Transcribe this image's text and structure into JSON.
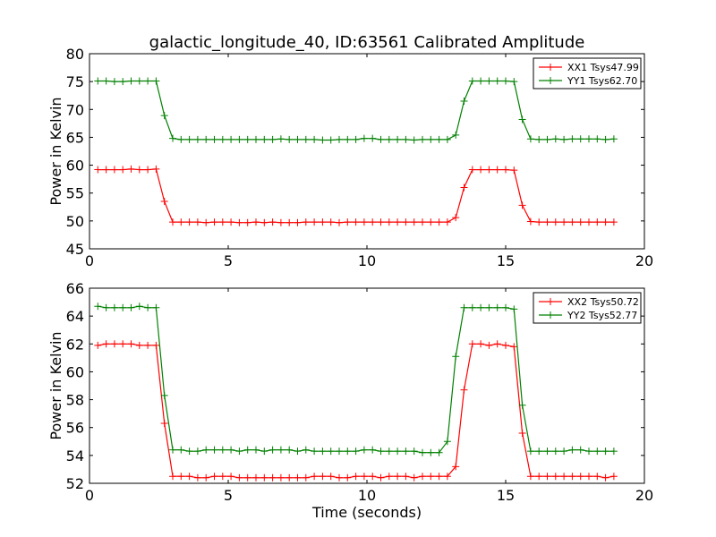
{
  "figure": {
    "title": "galactic_longitude_40, ID:63561 Calibrated Amplitude"
  },
  "colors": {
    "xx": "#ff0000",
    "yy": "#008000",
    "frame": "#000000",
    "background": "#ffffff"
  },
  "chart_data": [
    {
      "type": "line",
      "title": "galactic_longitude_40, ID:63561 Calibrated Amplitude",
      "xlabel": "",
      "ylabel": "Power in Kelvin",
      "xlim": [
        0,
        20
      ],
      "ylim": [
        45,
        80
      ],
      "xticks": [
        0,
        5,
        10,
        15,
        20
      ],
      "yticks": [
        45,
        50,
        55,
        60,
        65,
        70,
        75,
        80
      ],
      "grid": false,
      "legend_position": "top-right",
      "x": [
        0.3,
        0.6,
        0.9,
        1.2,
        1.5,
        1.8,
        2.1,
        2.4,
        2.7,
        3.0,
        3.3,
        3.6,
        3.9,
        4.2,
        4.5,
        4.8,
        5.1,
        5.4,
        5.7,
        6.0,
        6.3,
        6.6,
        6.9,
        7.2,
        7.5,
        7.8,
        8.1,
        8.4,
        8.7,
        9.0,
        9.3,
        9.6,
        9.9,
        10.2,
        10.5,
        10.8,
        11.1,
        11.4,
        11.7,
        12.0,
        12.3,
        12.6,
        12.9,
        13.2,
        13.5,
        13.8,
        14.1,
        14.4,
        14.7,
        15.0,
        15.3,
        15.6,
        15.9,
        16.2,
        16.5,
        16.8,
        17.1,
        17.4,
        17.7,
        18.0,
        18.3,
        18.6,
        18.9
      ],
      "series": [
        {
          "name": "XX1 Tsys47.99",
          "color": "#ff0000",
          "values": [
            59.2,
            59.2,
            59.2,
            59.2,
            59.3,
            59.2,
            59.2,
            59.3,
            53.5,
            49.8,
            49.8,
            49.8,
            49.8,
            49.7,
            49.8,
            49.8,
            49.8,
            49.7,
            49.7,
            49.8,
            49.7,
            49.8,
            49.7,
            49.7,
            49.7,
            49.8,
            49.8,
            49.8,
            49.8,
            49.7,
            49.8,
            49.8,
            49.8,
            49.8,
            49.8,
            49.8,
            49.8,
            49.8,
            49.8,
            49.8,
            49.8,
            49.8,
            49.8,
            50.6,
            56.0,
            59.2,
            59.2,
            59.2,
            59.2,
            59.2,
            59.1,
            52.8,
            49.9,
            49.8,
            49.8,
            49.8,
            49.8,
            49.8,
            49.8,
            49.8,
            49.8,
            49.8,
            49.8
          ]
        },
        {
          "name": "YY1 Tsys62.70",
          "color": "#008000",
          "values": [
            75.1,
            75.1,
            75.0,
            75.0,
            75.1,
            75.1,
            75.1,
            75.1,
            68.9,
            64.8,
            64.6,
            64.6,
            64.6,
            64.6,
            64.6,
            64.6,
            64.6,
            64.6,
            64.6,
            64.6,
            64.6,
            64.6,
            64.7,
            64.6,
            64.6,
            64.6,
            64.6,
            64.5,
            64.5,
            64.6,
            64.6,
            64.6,
            64.8,
            64.8,
            64.6,
            64.6,
            64.6,
            64.6,
            64.5,
            64.6,
            64.6,
            64.6,
            64.6,
            65.4,
            71.5,
            75.1,
            75.1,
            75.1,
            75.1,
            75.1,
            75.0,
            68.2,
            64.7,
            64.6,
            64.6,
            64.7,
            64.6,
            64.7,
            64.7,
            64.7,
            64.7,
            64.6,
            64.7
          ]
        }
      ]
    },
    {
      "type": "line",
      "title": "",
      "xlabel": "Time (seconds)",
      "ylabel": "Power in Kelvin",
      "xlim": [
        0,
        20
      ],
      "ylim": [
        52,
        66
      ],
      "xticks": [
        0,
        5,
        10,
        15,
        20
      ],
      "yticks": [
        52,
        54,
        56,
        58,
        60,
        62,
        64,
        66
      ],
      "grid": false,
      "legend_position": "top-right",
      "x": [
        0.3,
        0.6,
        0.9,
        1.2,
        1.5,
        1.8,
        2.1,
        2.4,
        2.7,
        3.0,
        3.3,
        3.6,
        3.9,
        4.2,
        4.5,
        4.8,
        5.1,
        5.4,
        5.7,
        6.0,
        6.3,
        6.6,
        6.9,
        7.2,
        7.5,
        7.8,
        8.1,
        8.4,
        8.7,
        9.0,
        9.3,
        9.6,
        9.9,
        10.2,
        10.5,
        10.8,
        11.1,
        11.4,
        11.7,
        12.0,
        12.3,
        12.6,
        12.9,
        13.2,
        13.5,
        13.8,
        14.1,
        14.4,
        14.7,
        15.0,
        15.3,
        15.6,
        15.9,
        16.2,
        16.5,
        16.8,
        17.1,
        17.4,
        17.7,
        18.0,
        18.3,
        18.6,
        18.9
      ],
      "series": [
        {
          "name": "XX2 Tsys50.72",
          "color": "#ff0000",
          "values": [
            61.9,
            62.0,
            62.0,
            62.0,
            62.0,
            61.9,
            61.9,
            61.9,
            56.3,
            52.5,
            52.5,
            52.5,
            52.4,
            52.4,
            52.5,
            52.5,
            52.5,
            52.4,
            52.4,
            52.4,
            52.4,
            52.4,
            52.4,
            52.4,
            52.4,
            52.4,
            52.5,
            52.5,
            52.5,
            52.4,
            52.4,
            52.5,
            52.5,
            52.5,
            52.4,
            52.5,
            52.5,
            52.5,
            52.4,
            52.5,
            52.5,
            52.5,
            52.5,
            53.2,
            58.7,
            62.0,
            62.0,
            61.9,
            62.0,
            61.9,
            61.8,
            55.6,
            52.5,
            52.5,
            52.5,
            52.5,
            52.5,
            52.5,
            52.5,
            52.5,
            52.5,
            52.4,
            52.5
          ]
        },
        {
          "name": "YY2 Tsys52.77",
          "color": "#008000",
          "values": [
            64.7,
            64.6,
            64.6,
            64.6,
            64.6,
            64.7,
            64.6,
            64.6,
            58.3,
            54.4,
            54.4,
            54.3,
            54.3,
            54.4,
            54.4,
            54.4,
            54.4,
            54.3,
            54.4,
            54.4,
            54.3,
            54.4,
            54.4,
            54.4,
            54.3,
            54.4,
            54.3,
            54.3,
            54.3,
            54.3,
            54.3,
            54.3,
            54.4,
            54.4,
            54.3,
            54.3,
            54.3,
            54.3,
            54.3,
            54.2,
            54.2,
            54.2,
            55.0,
            61.1,
            64.6,
            64.6,
            64.6,
            64.6,
            64.6,
            64.6,
            64.5,
            57.6,
            54.3,
            54.3,
            54.3,
            54.3,
            54.3,
            54.4,
            54.4,
            54.3,
            54.3,
            54.3,
            54.3
          ]
        }
      ]
    }
  ]
}
